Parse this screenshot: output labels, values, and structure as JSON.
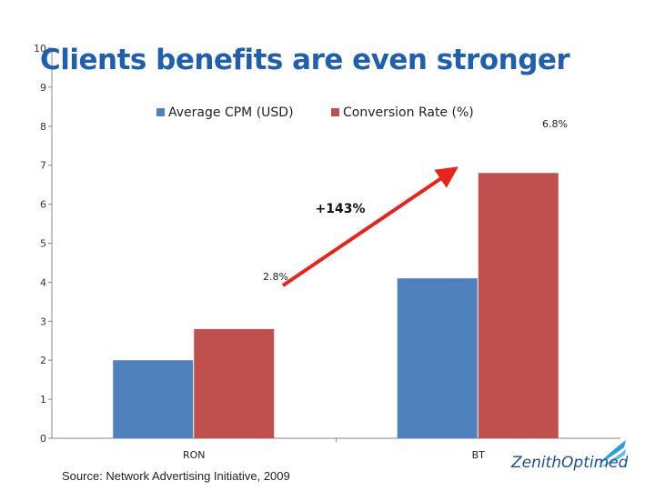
{
  "chart_data": {
    "type": "bar",
    "title": "Clients benefits are even stronger",
    "categories": [
      "RON",
      "BT"
    ],
    "series": [
      {
        "name": "Average CPM (USD)",
        "values": [
          2.0,
          4.1
        ],
        "color": "#4f81bd"
      },
      {
        "name": "Conversion Rate (%)",
        "values": [
          2.8,
          6.8
        ],
        "color": "#c0504d"
      }
    ],
    "data_labels": [
      "2.8%",
      "6.8%"
    ],
    "annotation": "+143%",
    "annotation_color": "#e8231c",
    "ylim": [
      0,
      10
    ],
    "yticks": [
      0,
      1,
      2,
      3,
      4,
      5,
      6,
      7,
      8,
      9,
      10
    ],
    "legend_position": "top-center",
    "grid": false
  },
  "source": "Source: Network Advertising Initiative, 2009",
  "logo": {
    "text": "ZenithOptimedia",
    "icon": "zenith-swoosh-logo"
  }
}
